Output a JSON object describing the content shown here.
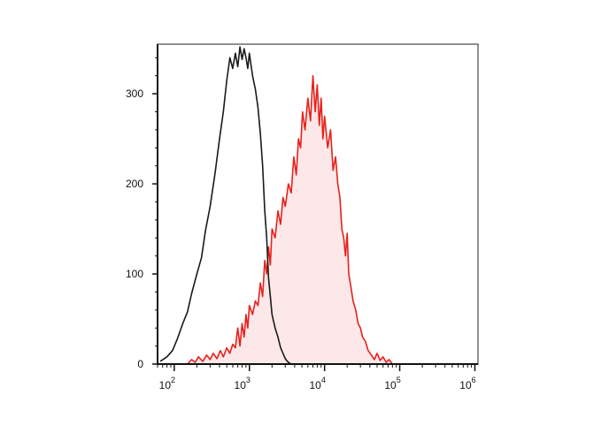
{
  "chart_data": {
    "type": "area",
    "x_scale": "log",
    "xlim": [
      60,
      1100000
    ],
    "ylim": [
      0,
      355
    ],
    "y_ticks": [
      {
        "value": 0,
        "label": "0"
      },
      {
        "value": 100,
        "label": "100"
      },
      {
        "value": 200,
        "label": "200"
      },
      {
        "value": 300,
        "label": "300"
      }
    ],
    "x_ticks": [
      {
        "value": 100,
        "base": "10",
        "exp": "2"
      },
      {
        "value": 1000,
        "base": "10",
        "exp": "3"
      },
      {
        "value": 10000,
        "base": "10",
        "exp": "4"
      },
      {
        "value": 100000,
        "base": "10",
        "exp": "5"
      },
      {
        "value": 1000000,
        "base": "10",
        "exp": "6"
      }
    ],
    "grid": false,
    "legend": "none",
    "series": [
      {
        "color": "#1a1a1a",
        "fill": "none",
        "x": [
          65,
          80,
          95,
          110,
          130,
          150,
          170,
          200,
          230,
          260,
          300,
          350,
          400,
          450,
          500,
          550,
          600,
          650,
          700,
          750,
          800,
          850,
          900,
          950,
          1000,
          1100,
          1200,
          1300,
          1400,
          1500,
          1600,
          1700,
          1800,
          1900,
          2000,
          2200,
          2400,
          2600,
          2800,
          3000,
          3200,
          3400,
          3700,
          4000,
          4500,
          5000,
          10000,
          100000,
          1000000
        ],
        "y": [
          3,
          8,
          15,
          28,
          45,
          58,
          78,
          100,
          118,
          148,
          175,
          212,
          250,
          280,
          315,
          340,
          328,
          345,
          330,
          352,
          338,
          350,
          340,
          328,
          345,
          320,
          305,
          285,
          255,
          220,
          170,
          140,
          95,
          75,
          55,
          40,
          30,
          18,
          12,
          6,
          3,
          1,
          0,
          0,
          0,
          0,
          0,
          0,
          0
        ]
      },
      {
        "color": "#e8211c",
        "fill": "#fce8e8",
        "x": [
          150,
          170,
          190,
          210,
          240,
          270,
          300,
          330,
          370,
          410,
          450,
          500,
          550,
          600,
          650,
          700,
          750,
          800,
          850,
          900,
          950,
          1000,
          1100,
          1200,
          1300,
          1400,
          1500,
          1600,
          1700,
          1800,
          1900,
          2000,
          2200,
          2400,
          2600,
          2800,
          3000,
          3300,
          3600,
          3900,
          4200,
          4500,
          4800,
          5100,
          5500,
          6000,
          6500,
          7000,
          7500,
          8000,
          8500,
          9000,
          9500,
          10000,
          11000,
          12000,
          13000,
          14000,
          15000,
          16000,
          17000,
          18000,
          19000,
          20000,
          21000,
          22000,
          24000,
          26000,
          28000,
          30000,
          32000,
          35000,
          38000,
          42000,
          46000,
          50000,
          55000,
          60000,
          66000,
          72000,
          80000
        ],
        "y": [
          0,
          5,
          2,
          8,
          3,
          10,
          5,
          12,
          6,
          15,
          8,
          18,
          12,
          22,
          18,
          40,
          20,
          45,
          30,
          55,
          40,
          65,
          55,
          70,
          65,
          90,
          75,
          115,
          100,
          130,
          110,
          150,
          140,
          170,
          155,
          185,
          175,
          200,
          190,
          230,
          210,
          250,
          240,
          280,
          260,
          295,
          270,
          320,
          280,
          310,
          265,
          295,
          250,
          275,
          240,
          260,
          215,
          230,
          200,
          185,
          150,
          140,
          120,
          145,
          100,
          90,
          70,
          60,
          45,
          40,
          30,
          25,
          15,
          10,
          5,
          12,
          4,
          8,
          2,
          5,
          0
        ]
      }
    ]
  }
}
